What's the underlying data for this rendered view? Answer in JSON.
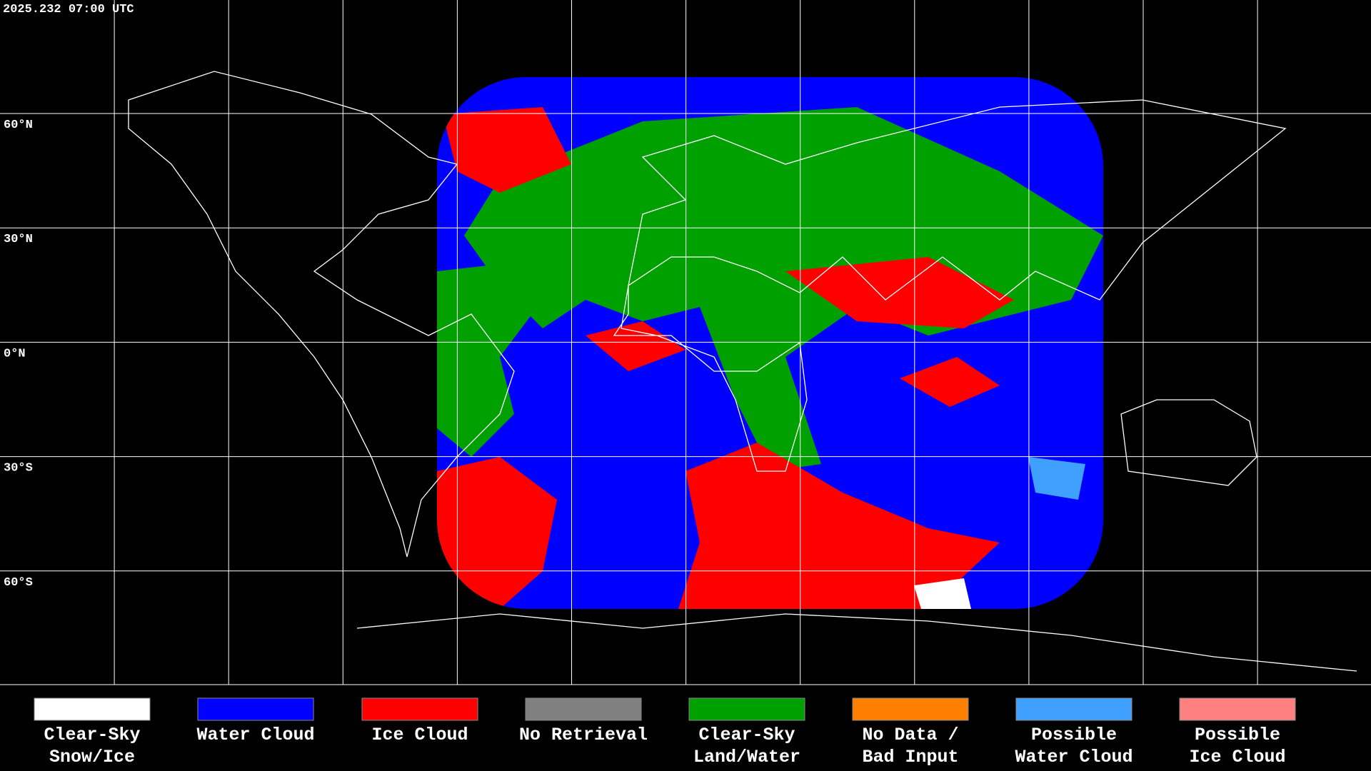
{
  "header": {
    "timestamp": "2025.232 07:00 UTC"
  },
  "map": {
    "latitude_labels": [
      "60°N",
      "30°N",
      "0°N",
      "30°S",
      "60°S"
    ]
  },
  "legend": {
    "items": [
      {
        "lines": [
          "Clear-Sky",
          "Snow/Ice"
        ],
        "color": "#ffffff"
      },
      {
        "lines": [
          "Water Cloud"
        ],
        "color": "#0000ff"
      },
      {
        "lines": [
          "Ice Cloud"
        ],
        "color": "#ff0000"
      },
      {
        "lines": [
          "No Retrieval"
        ],
        "color": "#808080"
      },
      {
        "lines": [
          "Clear-Sky",
          "Land/Water"
        ],
        "color": "#00a000"
      },
      {
        "lines": [
          "No Data /",
          "Bad Input"
        ],
        "color": "#ff8000"
      },
      {
        "lines": [
          "Possible",
          "Water Cloud"
        ],
        "color": "#40a0ff"
      },
      {
        "lines": [
          "Possible",
          "Ice Cloud"
        ],
        "color": "#ff8080"
      }
    ]
  }
}
